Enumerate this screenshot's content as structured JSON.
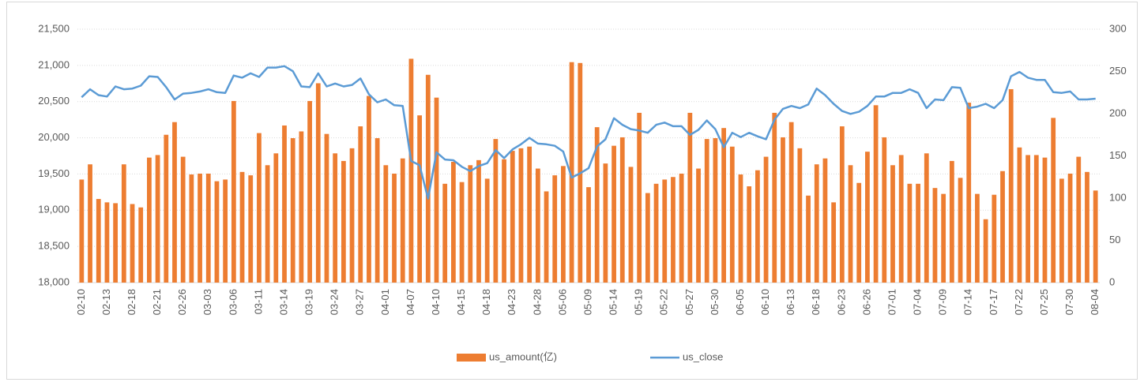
{
  "chart_data": {
    "type": "bar_line",
    "categories": [
      "02-10",
      null,
      null,
      "02-13",
      null,
      null,
      "02-18",
      null,
      null,
      "02-21",
      null,
      null,
      "02-26",
      null,
      null,
      "03-03",
      null,
      null,
      "03-06",
      null,
      null,
      "03-11",
      null,
      null,
      "03-14",
      null,
      null,
      "03-19",
      null,
      null,
      "03-24",
      null,
      null,
      "03-27",
      null,
      null,
      "04-01",
      null,
      null,
      "04-07",
      null,
      null,
      "04-10",
      null,
      null,
      "04-15",
      null,
      null,
      "04-18",
      null,
      null,
      "04-23",
      null,
      null,
      "04-28",
      null,
      null,
      "05-06",
      null,
      null,
      "05-09",
      null,
      null,
      "05-14",
      null,
      null,
      "05-19",
      null,
      null,
      "05-22",
      null,
      null,
      "05-27",
      null,
      null,
      "05-30",
      null,
      null,
      "06-05",
      null,
      null,
      "06-10",
      null,
      null,
      "06-13",
      null,
      null,
      "06-18",
      null,
      null,
      "06-23",
      null,
      null,
      "06-26",
      null,
      null,
      "07-01",
      null,
      null,
      "07-04",
      null,
      null,
      "07-09",
      null,
      null,
      "07-14",
      null,
      null,
      "07-17",
      null,
      null,
      "07-22",
      null,
      null,
      "07-25",
      null,
      null,
      "07-30",
      null,
      null,
      "08-04"
    ],
    "series": [
      {
        "name": "us_amount(亿)",
        "type": "bar",
        "axis": "y2",
        "color": "#ed7d31",
        "values": [
          122,
          140,
          99,
          95,
          94,
          140,
          93,
          89,
          148,
          151,
          175,
          190,
          149,
          128,
          129,
          129,
          120,
          122,
          215,
          131,
          127,
          177,
          139,
          153,
          186,
          171,
          179,
          215,
          236,
          176,
          153,
          144,
          159,
          185,
          221,
          171,
          139,
          129,
          147,
          265,
          198,
          246,
          219,
          117,
          143,
          119,
          139,
          145,
          123,
          170,
          146,
          156,
          159,
          161,
          135,
          108,
          127,
          138,
          261,
          260,
          113,
          184,
          141,
          162,
          172,
          137,
          201,
          106,
          117,
          122,
          125,
          129,
          201,
          135,
          170,
          171,
          183,
          161,
          128,
          114,
          133,
          149,
          201,
          172,
          190,
          159,
          103,
          140,
          147,
          95,
          185,
          139,
          118,
          155,
          210,
          172,
          139,
          151,
          117,
          117,
          153,
          112,
          105,
          144,
          124,
          213,
          105,
          75,
          104,
          132,
          229,
          160,
          151,
          151,
          148,
          195,
          123,
          129,
          149,
          131,
          109
        ]
      },
      {
        "name": "us_close",
        "type": "line",
        "axis": "y",
        "color": "#5b9bd5",
        "values": [
          20560,
          20670,
          20590,
          20570,
          20710,
          20670,
          20680,
          20720,
          20850,
          20840,
          20700,
          20530,
          20610,
          20620,
          20640,
          20670,
          20630,
          20620,
          20860,
          20830,
          20890,
          20840,
          20970,
          20970,
          20990,
          20920,
          20710,
          20700,
          20890,
          20710,
          20750,
          20710,
          20730,
          20820,
          20600,
          20490,
          20530,
          20450,
          20440,
          19680,
          19620,
          19160,
          19800,
          19700,
          19690,
          19600,
          19540,
          19610,
          19650,
          19830,
          19720,
          19840,
          19910,
          20000,
          19920,
          19910,
          19890,
          19810,
          19450,
          19510,
          19580,
          19880,
          19980,
          20270,
          20180,
          20120,
          20100,
          20070,
          20180,
          20210,
          20160,
          20160,
          20040,
          20110,
          20240,
          20120,
          19870,
          20070,
          20010,
          20070,
          20020,
          19980,
          20250,
          20400,
          20440,
          20410,
          20460,
          20680,
          20590,
          20470,
          20370,
          20330,
          20360,
          20440,
          20570,
          20570,
          20620,
          20620,
          20670,
          20620,
          20410,
          20530,
          20520,
          20700,
          20690,
          20410,
          20430,
          20470,
          20410,
          20520,
          20850,
          20910,
          20830,
          20800,
          20800,
          20630,
          20620,
          20640,
          20530,
          20530,
          20540
        ]
      }
    ],
    "ylim": [
      18000,
      21500
    ],
    "yticks": [
      {
        "value": 18000,
        "label": "18,000"
      },
      {
        "value": 18500,
        "label": "18,500"
      },
      {
        "value": 19000,
        "label": "19,000"
      },
      {
        "value": 19500,
        "label": "19,500"
      },
      {
        "value": 20000,
        "label": "20,000"
      },
      {
        "value": 20500,
        "label": "20,500"
      },
      {
        "value": 21000,
        "label": "21,000"
      },
      {
        "value": 21500,
        "label": "21,500"
      }
    ],
    "y2lim": [
      0,
      300
    ],
    "y2ticks": [
      0,
      50,
      100,
      150,
      200,
      250,
      300
    ],
    "grid": true,
    "legend": "bottom"
  }
}
